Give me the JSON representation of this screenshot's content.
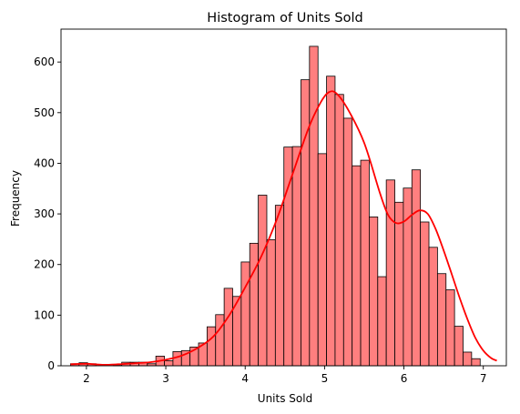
{
  "chart_data": {
    "type": "bar",
    "title": "Histogram of Units Sold",
    "xlabel": "Units Sold",
    "ylabel": "Frequency",
    "xlim": [
      1.68,
      7.29
    ],
    "ylim": [
      0,
      665
    ],
    "x_ticks": [
      2,
      3,
      4,
      5,
      6,
      7
    ],
    "y_ticks": [
      0,
      100,
      200,
      300,
      400,
      500,
      600
    ],
    "bar_color": "#ff7f7f",
    "edge_color": "#000000",
    "kde_color": "#ff0000",
    "grid": false,
    "bins": {
      "start": 1.8,
      "width": 0.1075,
      "counts": [
        4,
        6,
        4,
        0,
        0,
        2,
        7,
        7,
        7,
        4,
        19,
        10,
        28,
        30,
        37,
        45,
        77,
        101,
        153,
        137,
        205,
        242,
        337,
        249,
        317,
        432,
        433,
        565,
        631,
        419,
        572,
        536,
        489,
        395,
        406,
        294,
        176,
        367,
        323,
        351,
        387,
        284,
        234,
        182,
        150,
        78,
        27,
        14
      ]
    },
    "kde": {
      "x": [
        1.8,
        2.0,
        2.2,
        2.4,
        2.6,
        2.8,
        3.0,
        3.2,
        3.4,
        3.6,
        3.8,
        4.0,
        4.2,
        4.4,
        4.6,
        4.8,
        4.95,
        5.05,
        5.15,
        5.3,
        5.5,
        5.7,
        5.8,
        5.9,
        6.0,
        6.1,
        6.2,
        6.3,
        6.4,
        6.5,
        6.6,
        6.7,
        6.8,
        6.9,
        7.0,
        7.1,
        7.17
      ],
      "y": [
        3,
        4,
        2,
        3,
        5,
        7,
        12,
        20,
        35,
        58,
        100,
        155,
        215,
        290,
        380,
        470,
        520,
        540,
        538,
        505,
        440,
        340,
        298,
        282,
        285,
        298,
        307,
        300,
        270,
        228,
        182,
        135,
        92,
        55,
        30,
        15,
        10
      ]
    }
  }
}
